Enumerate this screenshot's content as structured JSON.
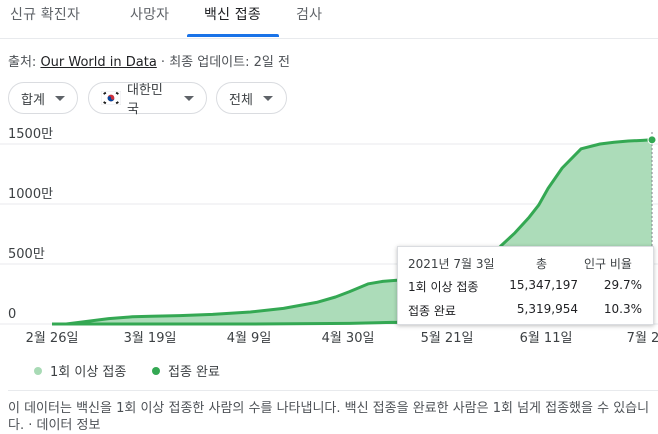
{
  "tabs": [
    {
      "label": "신규 확진자"
    },
    {
      "label": "사망자"
    },
    {
      "label": "백신 접종"
    },
    {
      "label": "검사"
    }
  ],
  "source": {
    "prefix": "출처: ",
    "link": "Our World in Data",
    "suffix": " · 최종 업데이트: 2일 전"
  },
  "filters": {
    "type": "합계",
    "country": "대한민국",
    "region": "전체"
  },
  "chart_data": {
    "type": "area",
    "x_ticks": [
      "2월 26일",
      "3월 19일",
      "4월 9일",
      "4월 30일",
      "5월 21일",
      "6월 11일",
      "7월 2"
    ],
    "y_ticks": [
      "1500만",
      "1000만",
      "500만",
      "0"
    ],
    "ylim": [
      0,
      16000000
    ],
    "series": [
      {
        "name": "1회 이상 접종",
        "color": "#a8dab5",
        "x": [
          "2021-02-26",
          "2021-03-01",
          "2021-03-05",
          "2021-03-10",
          "2021-03-15",
          "2021-03-19",
          "2021-03-25",
          "2021-04-01",
          "2021-04-09",
          "2021-04-16",
          "2021-04-23",
          "2021-04-27",
          "2021-04-30",
          "2021-05-04",
          "2021-05-07",
          "2021-05-10",
          "2021-05-14",
          "2021-05-18",
          "2021-05-21",
          "2021-05-27",
          "2021-06-01",
          "2021-06-04",
          "2021-06-07",
          "2021-06-09",
          "2021-06-11",
          "2021-06-14",
          "2021-06-18",
          "2021-06-22",
          "2021-06-25",
          "2021-06-28",
          "2021-07-01",
          "2021-07-03"
        ],
        "values": [
          0,
          0,
          200000,
          450000,
          600000,
          650000,
          700000,
          800000,
          1000000,
          1300000,
          1800000,
          2250000,
          2700000,
          3350000,
          3550000,
          3650000,
          3700000,
          3720000,
          3780000,
          4500000,
          6500000,
          7600000,
          8900000,
          9900000,
          11300000,
          13000000,
          14600000,
          15000000,
          15150000,
          15250000,
          15300000,
          15347197
        ]
      },
      {
        "name": "접종 완료",
        "color": "#34a853",
        "x": [
          "2021-02-26",
          "2021-03-19",
          "2021-04-09",
          "2021-04-30",
          "2021-05-10",
          "2021-05-21",
          "2021-06-01",
          "2021-06-11",
          "2021-06-20",
          "2021-07-03"
        ],
        "values": [
          0,
          0,
          0,
          50000,
          150000,
          900000,
          1800000,
          2700000,
          3900000,
          5319954
        ]
      }
    ]
  },
  "tooltip": {
    "date": "2021년 7월 3일",
    "col_total": "총",
    "col_ratio": "인구 비율",
    "rows": [
      {
        "label": "1회 이상 접종",
        "total": "15,347,197",
        "ratio": "29.7%"
      },
      {
        "label": "접종 완료",
        "total": "5,319,954",
        "ratio": "10.3%"
      }
    ]
  },
  "legend": [
    {
      "label": "1회 이상 접종",
      "color": "#a8dab5"
    },
    {
      "label": "접종 완료",
      "color": "#34a853"
    }
  ],
  "description": "이 데이터는 백신을 1회 이상 접종한 사람의 수를 나타냅니다. 백신 접종을 완료한 사람은 1회 넘게 접종했을 수 있습니다. · 데이터 정보"
}
